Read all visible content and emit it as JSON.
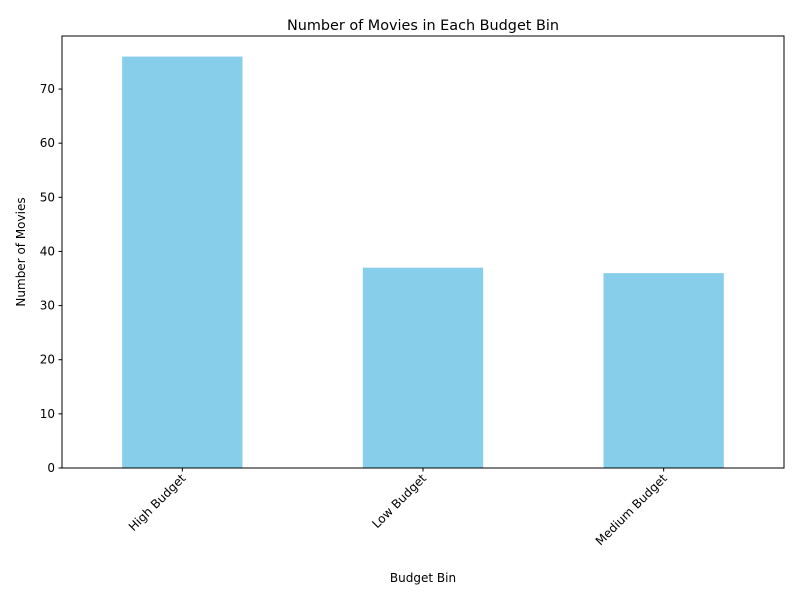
{
  "chart_data": {
    "type": "bar",
    "title": "Number of Movies in Each Budget Bin",
    "xlabel": "Budget Bin",
    "ylabel": "Number of Movies",
    "categories": [
      "High Budget",
      "Low Budget",
      "Medium Budget"
    ],
    "values": [
      76,
      37,
      36
    ],
    "ylim": [
      0,
      79.8
    ],
    "yticks": [
      "0",
      "10",
      "20",
      "30",
      "40",
      "50",
      "60",
      "70"
    ],
    "bar_color": "#87ceeb",
    "grid": false,
    "x_tick_rotation": "45 degrees",
    "legend": "none"
  }
}
